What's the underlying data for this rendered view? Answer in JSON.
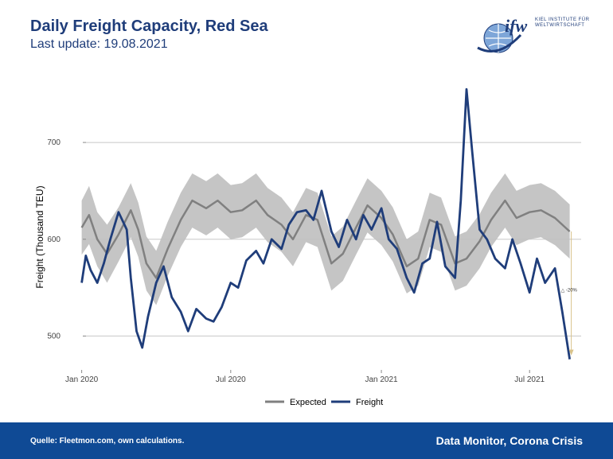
{
  "header": {
    "title": "Daily Freight Capacity, Red Sea",
    "subtitle": "Last update: 19.08.2021"
  },
  "logo": {
    "text": "ifw",
    "sub": "KIEL INSTITUTE FÜR WELTWIRTSCHAFT"
  },
  "footer": {
    "source": "Quelle: Fleetmon.com, own calculations.",
    "brand": "Data Monitor, Corona Crisis"
  },
  "colors": {
    "title": "#1f3d7a",
    "footer_bg": "#0f4a95",
    "freight": "#1f3d7a",
    "expected": "#808080",
    "band": "#bfbfbf",
    "annotation_arrow": "#d8c28a"
  },
  "chart_data": {
    "type": "line",
    "ylabel": "Freight (Thousand TEU)",
    "xlabel": "",
    "x_ticks": [
      "Jan 2020",
      "Jul 2020",
      "Jan 2021",
      "Jul 2021"
    ],
    "y_ticks": [
      500,
      600,
      700
    ],
    "ylim": [
      465,
      765
    ],
    "xlim": [
      "2020-01-01",
      "2021-08-19"
    ],
    "grid": true,
    "legend_position": "bottom",
    "annotation": "-20%",
    "series": [
      {
        "name": "Expected",
        "dates": [
          "2020-01-01",
          "2020-01-10",
          "2020-01-20",
          "2020-02-01",
          "2020-02-15",
          "2020-03-01",
          "2020-03-10",
          "2020-03-20",
          "2020-04-01",
          "2020-04-15",
          "2020-05-01",
          "2020-05-15",
          "2020-06-01",
          "2020-06-15",
          "2020-07-01",
          "2020-07-15",
          "2020-08-01",
          "2020-08-15",
          "2020-09-01",
          "2020-09-15",
          "2020-10-01",
          "2020-10-15",
          "2020-11-01",
          "2020-11-15",
          "2020-12-01",
          "2020-12-15",
          "2021-01-01",
          "2021-01-15",
          "2021-02-01",
          "2021-02-15",
          "2021-03-01",
          "2021-03-15",
          "2021-04-01",
          "2021-04-15",
          "2021-05-01",
          "2021-05-15",
          "2021-06-01",
          "2021-06-15",
          "2021-07-01",
          "2021-07-15",
          "2021-08-01",
          "2021-08-19"
        ],
        "values": [
          612,
          625,
          600,
          585,
          605,
          630,
          610,
          575,
          560,
          590,
          620,
          640,
          632,
          640,
          628,
          630,
          640,
          625,
          615,
          600,
          625,
          620,
          575,
          585,
          612,
          635,
          622,
          605,
          572,
          580,
          620,
          615,
          575,
          580,
          598,
          620,
          640,
          622,
          628,
          630,
          622,
          608
        ],
        "lower": [
          584,
          595,
          572,
          555,
          577,
          602,
          582,
          547,
          532,
          562,
          592,
          612,
          604,
          612,
          600,
          602,
          612,
          597,
          587,
          572,
          597,
          592,
          547,
          557,
          584,
          607,
          594,
          577,
          544,
          552,
          592,
          587,
          547,
          552,
          570,
          592,
          612,
          594,
          600,
          602,
          594,
          580
        ],
        "upper": [
          640,
          655,
          628,
          615,
          633,
          658,
          638,
          603,
          588,
          618,
          648,
          668,
          660,
          668,
          656,
          658,
          668,
          653,
          643,
          628,
          653,
          648,
          603,
          613,
          640,
          663,
          650,
          633,
          600,
          608,
          648,
          643,
          603,
          608,
          626,
          648,
          668,
          650,
          656,
          658,
          650,
          636
        ]
      },
      {
        "name": "Freight",
        "dates": [
          "2020-01-01",
          "2020-01-06",
          "2020-01-12",
          "2020-01-20",
          "2020-01-28",
          "2020-02-05",
          "2020-02-15",
          "2020-02-25",
          "2020-03-01",
          "2020-03-08",
          "2020-03-15",
          "2020-03-22",
          "2020-04-01",
          "2020-04-10",
          "2020-04-20",
          "2020-05-01",
          "2020-05-10",
          "2020-05-20",
          "2020-06-01",
          "2020-06-10",
          "2020-06-20",
          "2020-07-01",
          "2020-07-10",
          "2020-07-20",
          "2020-08-01",
          "2020-08-10",
          "2020-08-20",
          "2020-09-01",
          "2020-09-10",
          "2020-09-20",
          "2020-10-01",
          "2020-10-10",
          "2020-10-20",
          "2020-11-01",
          "2020-11-10",
          "2020-11-20",
          "2020-12-01",
          "2020-12-10",
          "2020-12-20",
          "2021-01-01",
          "2021-01-10",
          "2021-01-20",
          "2021-02-01",
          "2021-02-10",
          "2021-02-20",
          "2021-03-01",
          "2021-03-10",
          "2021-03-20",
          "2021-04-01",
          "2021-04-08",
          "2021-04-15",
          "2021-04-22",
          "2021-05-01",
          "2021-05-10",
          "2021-05-20",
          "2021-06-01",
          "2021-06-10",
          "2021-06-20",
          "2021-07-01",
          "2021-07-10",
          "2021-07-20",
          "2021-08-01",
          "2021-08-10",
          "2021-08-19"
        ],
        "values": [
          555,
          583,
          568,
          555,
          575,
          600,
          628,
          610,
          560,
          505,
          488,
          520,
          555,
          572,
          540,
          525,
          505,
          528,
          518,
          515,
          530,
          555,
          550,
          578,
          588,
          575,
          600,
          590,
          615,
          628,
          630,
          620,
          650,
          608,
          592,
          620,
          600,
          625,
          610,
          632,
          600,
          590,
          560,
          545,
          575,
          580,
          618,
          572,
          560,
          640,
          755,
          690,
          610,
          600,
          580,
          570,
          600,
          575,
          545,
          580,
          555,
          570,
          525,
          476
        ]
      }
    ]
  }
}
